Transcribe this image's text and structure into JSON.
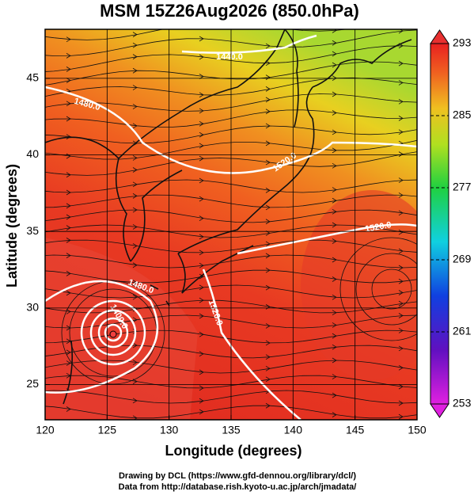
{
  "chart_data": {
    "type": "map",
    "title": "MSM 15Z26Aug2026 (850.0hPa)",
    "x_label": "Longitude (degrees)",
    "y_label": "Latitude  (degrees)",
    "xlim": [
      120,
      150
    ],
    "xticks": [
      120,
      125,
      130,
      135,
      140,
      145,
      150
    ],
    "ylim": [
      22.7,
      48.2
    ],
    "yticks": [
      25,
      30,
      35,
      40,
      45
    ],
    "grid": true,
    "colorbar": {
      "lim": [
        253,
        293
      ],
      "ticks": [
        253,
        261,
        269,
        277,
        285,
        293
      ]
    },
    "contour_labels": [
      "1440.0",
      "1480.0",
      "1520.0",
      "1520.0",
      "1480.0",
      "1520.0",
      "1400.0"
    ],
    "credits": [
      "Drawing by DCL (https://www.gfd-dennou.org/library/dcl/)",
      "Data from http://database.rish.kyoto-u.ac.jp/arch/jmadata/"
    ]
  }
}
